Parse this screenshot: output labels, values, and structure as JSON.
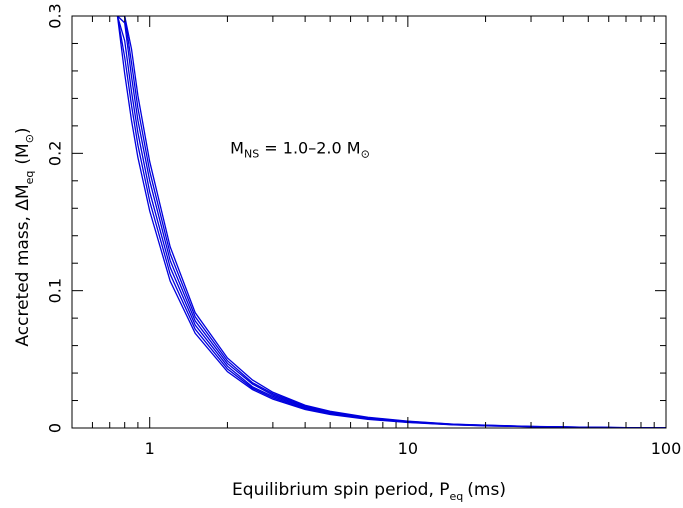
{
  "chart_data": {
    "type": "line",
    "xscale": "log",
    "xlim": [
      0.5,
      100
    ],
    "ylim": [
      0,
      0.3
    ],
    "grid": false,
    "xlabel": {
      "main": "Equilibrium spin period, P",
      "sub": "eq",
      "unit": "(ms)"
    },
    "ylabel": {
      "main": "Accreted mass, ΔM",
      "sub": "eq",
      "unit_open": "(M",
      "unit_symbol": "⊙",
      "unit_close": ")"
    },
    "x_tick_labels": [
      {
        "value": 1,
        "label": "1"
      },
      {
        "value": 10,
        "label": "10"
      },
      {
        "value": 100,
        "label": "100"
      }
    ],
    "y_tick_labels": [
      {
        "value": 0,
        "label": "0"
      },
      {
        "value": 0.1,
        "label": "0.1"
      },
      {
        "value": 0.2,
        "label": "0.2"
      },
      {
        "value": 0.3,
        "label": "0.3"
      }
    ],
    "annotation": {
      "prefix": "M",
      "sub": "NS",
      "text": " = 1.0–2.0 M",
      "symbol": "⊙",
      "x": 2.05,
      "y": 0.2
    },
    "line_color": "#0000dd",
    "x": [
      0.75,
      0.8,
      0.85,
      0.9,
      1,
      1.2,
      1.5,
      2,
      2.5,
      3,
      4,
      5,
      7,
      10,
      15,
      20,
      30,
      50,
      70,
      100
    ],
    "series": [
      {
        "values": [
          0.3,
          0.258,
          0.224,
          0.197,
          0.158,
          0.107,
          0.069,
          0.041,
          0.028,
          0.021,
          0.0135,
          0.0098,
          0.0063,
          0.004,
          0.0023,
          0.0016,
          0.0009,
          0.0004,
          0.0002,
          0.0001
        ]
      },
      {
        "values": [
          0.3,
          0.27,
          0.235,
          0.206,
          0.165,
          0.112,
          0.072,
          0.043,
          0.029,
          0.022,
          0.014,
          0.0103,
          0.0066,
          0.0042,
          0.0024,
          0.0017,
          0.001,
          0.0004,
          0.0002,
          0.0001
        ]
      },
      {
        "values": [
          0.3,
          0.282,
          0.245,
          0.215,
          0.172,
          0.117,
          0.075,
          0.045,
          0.03,
          0.023,
          0.0147,
          0.0108,
          0.0069,
          0.0044,
          0.0025,
          0.0018,
          0.001,
          0.0005,
          0.0002,
          0.0001
        ]
      },
      {
        "values": [
          0.3,
          0.295,
          0.256,
          0.224,
          0.18,
          0.122,
          0.078,
          0.047,
          0.032,
          0.024,
          0.0153,
          0.0112,
          0.0072,
          0.0046,
          0.0026,
          0.0019,
          0.0011,
          0.0005,
          0.0003,
          0.0001
        ]
      },
      {
        "values": [
          0.3,
          0.3,
          0.266,
          0.233,
          0.187,
          0.127,
          0.081,
          0.049,
          0.033,
          0.025,
          0.016,
          0.0117,
          0.0075,
          0.0048,
          0.0027,
          0.002,
          0.0011,
          0.0005,
          0.0003,
          0.0001
        ]
      },
      {
        "values": [
          0.3,
          0.3,
          0.276,
          0.242,
          0.194,
          0.132,
          0.084,
          0.051,
          0.035,
          0.026,
          0.0166,
          0.0122,
          0.0078,
          0.005,
          0.0028,
          0.0021,
          0.0012,
          0.0005,
          0.0003,
          0.0001
        ]
      }
    ]
  }
}
